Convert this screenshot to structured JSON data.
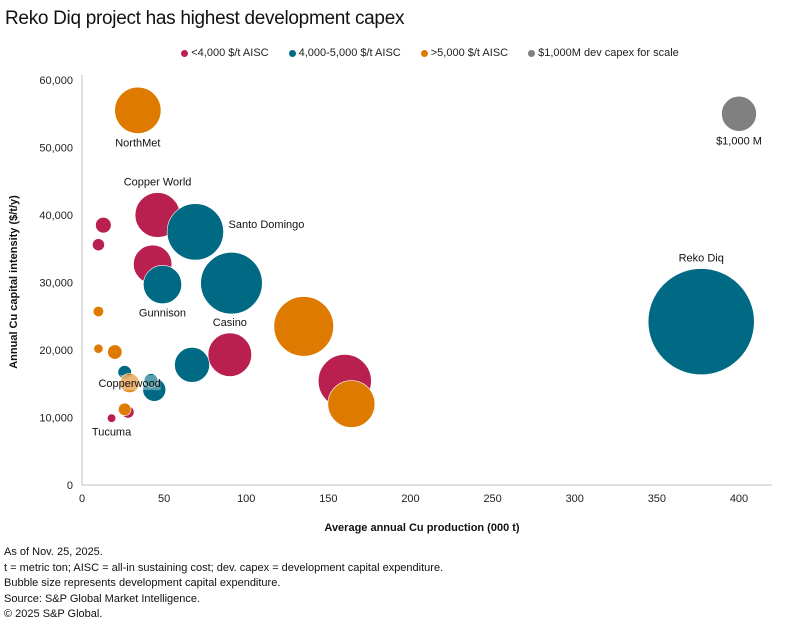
{
  "chart_data": {
    "type": "bubble",
    "title": "Reko Diq project has highest development capex",
    "xlabel": "Average annual Cu production (000 t)",
    "ylabel": "Annual Cu capital intensity ($/t/y)",
    "xlim": [
      0,
      420
    ],
    "ylim": [
      0,
      60000
    ],
    "x_ticks": [
      0,
      50,
      100,
      150,
      200,
      250,
      300,
      350,
      400
    ],
    "y_ticks": [
      0,
      10000,
      20000,
      30000,
      40000,
      50000,
      60000
    ],
    "y_tick_labels": [
      "0",
      "10,000",
      "20,000",
      "30,000",
      "40,000",
      "50,000",
      "60,000"
    ],
    "grid": false,
    "legend_position": "top-center",
    "size_unit": "Development capex ($M)",
    "categories": [
      {
        "key": "low",
        "label": "<4,000 $/t AISC",
        "color": "#B91F4F"
      },
      {
        "key": "mid",
        "label": "4,000-5,000 $/t AISC",
        "color": "#006A85"
      },
      {
        "key": "high",
        "label": ">5,000 $/t AISC",
        "color": "#DE7A00"
      },
      {
        "key": "scale",
        "label": "$1,000M dev capex for scale",
        "color": "#808080"
      }
    ],
    "points": [
      {
        "name": "Reko Diq",
        "category": "mid",
        "x": 377,
        "y": 24200,
        "capex": 9200,
        "label": "Reko Diq",
        "label_pos": "above"
      },
      {
        "name": "$1,000 M",
        "category": "scale",
        "x": 400,
        "y": 55000,
        "capex": 1000,
        "label": "$1,000 M",
        "label_pos": "below"
      },
      {
        "name": "NorthMet",
        "category": "high",
        "x": 34,
        "y": 55500,
        "capex": 1750,
        "label": "NorthMet",
        "label_pos": "below"
      },
      {
        "name": "Copper World",
        "category": "low",
        "x": 46,
        "y": 40000,
        "capex": 1650,
        "label": "Copper World",
        "label_pos": "above"
      },
      {
        "name": "Santo Domingo",
        "category": "mid",
        "x": 69,
        "y": 37500,
        "capex": 2600,
        "label": "Santo Domingo",
        "label_pos": "right"
      },
      {
        "name": "",
        "category": "low",
        "x": 13,
        "y": 38500,
        "capex": 200,
        "label": ""
      },
      {
        "name": "",
        "category": "low",
        "x": 10,
        "y": 35600,
        "capex": 120,
        "label": ""
      },
      {
        "name": "",
        "category": "low",
        "x": 43,
        "y": 32700,
        "capex": 1200,
        "label": ""
      },
      {
        "name": "Gunnison",
        "category": "mid",
        "x": 49,
        "y": 29700,
        "capex": 1200,
        "label": "Gunnison",
        "label_pos": "below"
      },
      {
        "name": "",
        "category": "mid",
        "x": 91,
        "y": 29900,
        "capex": 3100,
        "label": ""
      },
      {
        "name": "",
        "category": "high",
        "x": 10,
        "y": 25700,
        "capex": 90,
        "label": ""
      },
      {
        "name": "",
        "category": "high",
        "x": 135,
        "y": 23500,
        "capex": 2900,
        "label": ""
      },
      {
        "name": "Casino",
        "category": "low",
        "x": 90,
        "y": 19300,
        "capex": 1550,
        "label": "Casino",
        "label_pos": "above"
      },
      {
        "name": "",
        "category": "mid",
        "x": 67,
        "y": 17800,
        "capex": 1000,
        "label": ""
      },
      {
        "name": "",
        "category": "high",
        "x": 10,
        "y": 20200,
        "capex": 70,
        "label": ""
      },
      {
        "name": "",
        "category": "high",
        "x": 20,
        "y": 19700,
        "capex": 170,
        "label": ""
      },
      {
        "name": "",
        "category": "low",
        "x": 160,
        "y": 15400,
        "capex": 2300,
        "label": ""
      },
      {
        "name": "",
        "category": "high",
        "x": 164,
        "y": 12000,
        "capex": 1800,
        "label": ""
      },
      {
        "name": "",
        "category": "mid",
        "x": 26,
        "y": 16700,
        "capex": 150,
        "label": ""
      },
      {
        "name": "",
        "category": "mid",
        "x": 44,
        "y": 14100,
        "capex": 430,
        "label": ""
      },
      {
        "name": "",
        "category": "mid",
        "x": 42,
        "y": 15500,
        "capex": 150,
        "label": ""
      },
      {
        "name": "Copperwood",
        "category": "high",
        "x": 29,
        "y": 15100,
        "capex": 300,
        "label": "Copperwood",
        "label_pos": "center"
      },
      {
        "name": "",
        "category": "low",
        "x": 28,
        "y": 10800,
        "capex": 120,
        "label": ""
      },
      {
        "name": "",
        "category": "high",
        "x": 26,
        "y": 11200,
        "capex": 130,
        "label": ""
      },
      {
        "name": "Tucuma",
        "category": "low",
        "x": 18,
        "y": 9900,
        "capex": 60,
        "label": "Tucuma",
        "label_pos": "below"
      }
    ]
  },
  "notes": [
    "As of Nov. 25, 2025.",
    "t = metric ton; AISC = all-in sustaining cost; dev. capex = development capital expenditure.",
    "Bubble size represents development capital expenditure.",
    "Source: S&P Global Market Intelligence.",
    "© 2025 S&P Global."
  ]
}
